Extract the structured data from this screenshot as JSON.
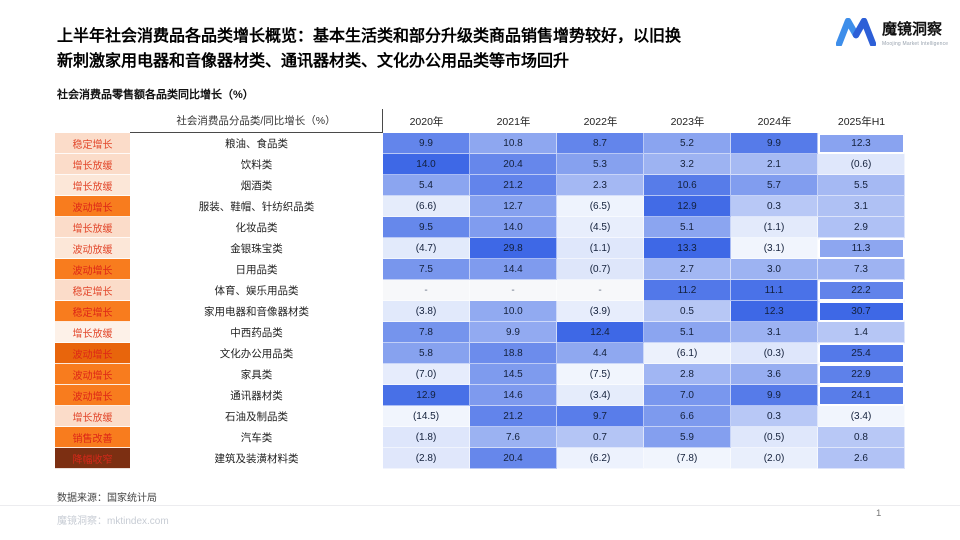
{
  "title": {
    "line1": "上半年社会消费品各品类增长概览：基本生活类和部分升级类商品销售增势较好，以旧换",
    "line2": "新刺激家用电器和音像器材类、通讯器材类、文化办公用品类等市场回升"
  },
  "logo": {
    "name": "魔镜洞察",
    "tagline": "Moojing Market Intelligence"
  },
  "chart_data": {
    "type": "heatmap",
    "title": "社会消费品零售额各品类同比增长（%）",
    "corner_label": "社会消费品分品类/同比增长（%）",
    "columns": [
      "2020年",
      "2021年",
      "2022年",
      "2023年",
      "2024年",
      "2025年H1"
    ],
    "value_note": "values are YoY growth %, parentheses = negative",
    "rows": [
      {
        "tag": "稳定增长",
        "tag_style": "light-a",
        "category": "粮油、食品类",
        "values": [
          "9.9",
          "10.8",
          "8.7",
          "5.2",
          "9.9",
          "12.3"
        ],
        "highlight_last": true
      },
      {
        "tag": "增长放缓",
        "tag_style": "light-a",
        "category": "饮料类",
        "values": [
          "14.0",
          "20.4",
          "5.3",
          "3.2",
          "2.1",
          "(0.6)"
        ],
        "highlight_last": false
      },
      {
        "tag": "增长放缓",
        "tag_style": "light-b",
        "category": "烟酒类",
        "values": [
          "5.4",
          "21.2",
          "2.3",
          "10.6",
          "5.7",
          "5.5"
        ],
        "highlight_last": false
      },
      {
        "tag": "波动增长",
        "tag_style": "orange",
        "category": "服装、鞋帽、针纺织品类",
        "values": [
          "(6.6)",
          "12.7",
          "(6.5)",
          "12.9",
          "0.3",
          "3.1"
        ],
        "highlight_last": false
      },
      {
        "tag": "增长放缓",
        "tag_style": "light-a",
        "category": "化妆品类",
        "values": [
          "9.5",
          "14.0",
          "(4.5)",
          "5.1",
          "(1.1)",
          "2.9"
        ],
        "highlight_last": false
      },
      {
        "tag": "波动放缓",
        "tag_style": "light-b",
        "category": "金银珠宝类",
        "values": [
          "(4.7)",
          "29.8",
          "(1.1)",
          "13.3",
          "(3.1)",
          "11.3"
        ],
        "highlight_last": true
      },
      {
        "tag": "波动增长",
        "tag_style": "orange",
        "category": "日用品类",
        "values": [
          "7.5",
          "14.4",
          "(0.7)",
          "2.7",
          "3.0",
          "7.3"
        ],
        "highlight_last": false
      },
      {
        "tag": "稳定增长",
        "tag_style": "light-a",
        "category": "体育、娱乐用品类",
        "values": [
          "-",
          "-",
          "-",
          "11.2",
          "11.1",
          "22.2"
        ],
        "highlight_last": true
      },
      {
        "tag": "稳定增长",
        "tag_style": "orange",
        "category": "家用电器和音像器材类",
        "values": [
          "(3.8)",
          "10.0",
          "(3.9)",
          "0.5",
          "12.3",
          "30.7"
        ],
        "highlight_last": true
      },
      {
        "tag": "增长放缓",
        "tag_style": "light-c",
        "category": "中西药品类",
        "values": [
          "7.8",
          "9.9",
          "12.4",
          "5.1",
          "3.1",
          "1.4"
        ],
        "highlight_last": false
      },
      {
        "tag": "波动增长",
        "tag_style": "orange-dark",
        "category": "文化办公用品类",
        "values": [
          "5.8",
          "18.8",
          "4.4",
          "(6.1)",
          "(0.3)",
          "25.4"
        ],
        "highlight_last": true
      },
      {
        "tag": "波动增长",
        "tag_style": "orange",
        "category": "家具类",
        "values": [
          "(7.0)",
          "14.5",
          "(7.5)",
          "2.8",
          "3.6",
          "22.9"
        ],
        "highlight_last": true
      },
      {
        "tag": "波动增长",
        "tag_style": "orange",
        "category": "通讯器材类",
        "values": [
          "12.9",
          "14.6",
          "(3.4)",
          "7.0",
          "9.9",
          "24.1"
        ],
        "highlight_last": true
      },
      {
        "tag": "增长放缓",
        "tag_style": "light-a",
        "category": "石油及制品类",
        "values": [
          "(14.5)",
          "21.2",
          "9.7",
          "6.6",
          "0.3",
          "(3.4)"
        ],
        "highlight_last": false
      },
      {
        "tag": "销售改善",
        "tag_style": "orange",
        "category": "汽车类",
        "values": [
          "(1.8)",
          "7.6",
          "0.7",
          "5.9",
          "(0.5)",
          "0.8"
        ],
        "highlight_last": false
      },
      {
        "tag": "降幅收窄",
        "tag_style": "brown",
        "category": "建筑及装潢材料类",
        "values": [
          "(2.8)",
          "20.4",
          "(6.2)",
          "(7.8)",
          "(2.0)",
          "2.6"
        ],
        "highlight_last": false
      }
    ]
  },
  "colors": {
    "heat_low": "#F1F5FD",
    "heat_high": "#3E68E6",
    "heat_na": "#F7F8FA",
    "accent_orange": "#F87C1E",
    "brand_blue": "#2E6BE0"
  },
  "footer": {
    "source": "数据来源：国家统计局",
    "watermark": "魔镜洞察：mktindex.com",
    "page": "1"
  }
}
